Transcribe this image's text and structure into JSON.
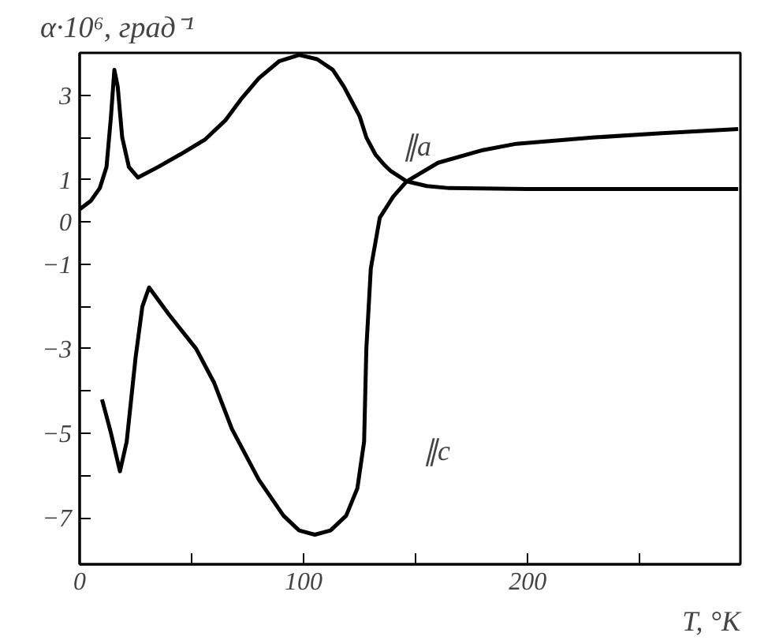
{
  "chart_data": {
    "type": "line",
    "xlabel": "T, °K",
    "ylabel": "α·10⁶, град⁻¹",
    "xlim": [
      0,
      295
    ],
    "ylim": [
      -8.1,
      4
    ],
    "xticks": [
      0,
      {
        "value": 50,
        "label": null
      },
      100,
      {
        "value": 150,
        "label": null
      },
      200,
      {
        "value": 250,
        "label": null
      }
    ],
    "yticks": [
      -7,
      {
        "value": -6,
        "label": null
      },
      -5,
      {
        "value": -4,
        "label": null
      },
      -3,
      {
        "value": -2,
        "label": null
      },
      -1,
      0,
      1,
      {
        "value": 2,
        "label": null
      },
      3
    ],
    "grid": false,
    "marker": "none",
    "line_style": "solid",
    "series": [
      {
        "color": "#000000",
        "x": [
          0,
          5,
          9,
          12,
          14,
          15.5,
          17,
          19,
          22,
          26,
          35,
          45,
          56,
          65,
          72,
          80,
          89,
          98,
          106,
          113,
          118,
          122,
          125,
          128,
          132,
          136,
          139,
          146,
          155,
          165,
          200,
          250,
          294
        ],
        "values": [
          0.3,
          0.5,
          0.8,
          1.3,
          2.5,
          3.6,
          3.2,
          2.0,
          1.3,
          1.05,
          1.3,
          1.6,
          1.95,
          2.4,
          2.9,
          3.4,
          3.8,
          3.95,
          3.85,
          3.6,
          3.2,
          2.8,
          2.5,
          2.0,
          1.6,
          1.35,
          1.2,
          0.96,
          0.85,
          0.8,
          0.78,
          0.78,
          0.78
        ]
      },
      {
        "color": "#000000",
        "x": [
          10,
          14,
          18,
          21,
          25,
          28,
          31,
          40,
          52,
          60,
          68,
          80,
          91,
          98,
          105,
          112,
          119,
          124,
          127,
          128,
          130,
          134,
          140,
          146,
          160,
          180,
          195,
          230,
          260,
          294
        ],
        "values": [
          -4.2,
          -5.0,
          -5.9,
          -5.2,
          -3.2,
          -2.0,
          -1.55,
          -2.2,
          -3.0,
          -3.8,
          -4.9,
          -6.1,
          -6.95,
          -7.3,
          -7.4,
          -7.3,
          -6.95,
          -6.3,
          -5.2,
          -3.0,
          -1.1,
          0.1,
          0.6,
          0.96,
          1.4,
          1.7,
          1.85,
          2.0,
          2.1,
          2.2
        ]
      }
    ],
    "annotations": [
      "∥a",
      "∥c"
    ]
  }
}
